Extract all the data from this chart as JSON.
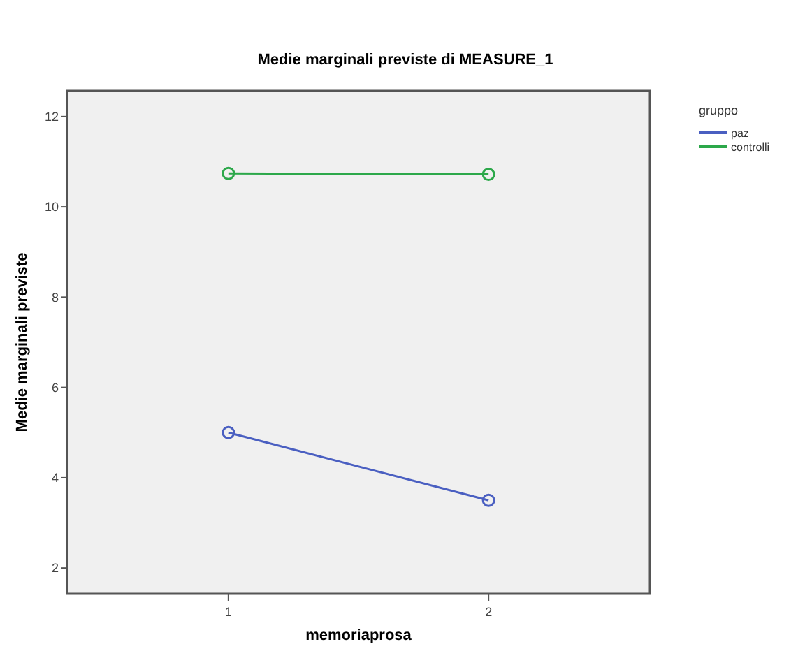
{
  "chart_data": {
    "type": "line",
    "title": "Medie marginali previste di MEASURE_1",
    "xlabel": "memoriaprosa",
    "ylabel": "Medie marginali previste",
    "legend_title": "gruppo",
    "categories": [
      "1",
      "2"
    ],
    "series": [
      {
        "name": "paz",
        "color": "#4a5fc1",
        "values": [
          5.0,
          3.5
        ]
      },
      {
        "name": "controlli",
        "color": "#2ca84a",
        "values": [
          10.74,
          10.72
        ]
      }
    ],
    "ylim": [
      1.43,
      12.57
    ],
    "yticks": [
      2,
      4,
      6,
      8,
      10,
      12
    ],
    "marker": "circle",
    "legend": "top right",
    "grid": false
  }
}
